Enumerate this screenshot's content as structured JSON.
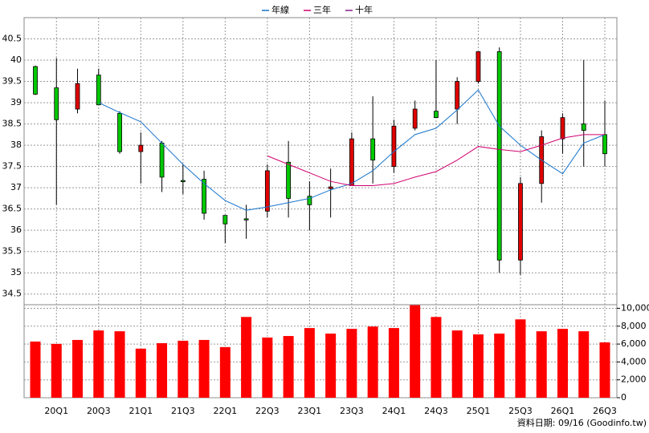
{
  "chart_data": {
    "type": "candlestick",
    "categories": [
      null,
      "20Q1",
      null,
      "20Q3",
      null,
      "21Q1",
      null,
      "21Q3",
      null,
      "22Q1",
      null,
      "22Q3",
      null,
      "23Q1",
      null,
      "23Q3",
      null,
      "24Q1",
      null,
      "24Q3",
      null,
      "25Q1",
      null,
      "25Q3",
      null,
      "26Q1",
      null,
      "26Q3"
    ],
    "ohlc": {
      "open": [
        39.85,
        39.35,
        38.85,
        39.65,
        38.75,
        37.85,
        38.05,
        37.17,
        37.2,
        36.35,
        36.27,
        36.45,
        37.6,
        36.8,
        36.98,
        37.05,
        38.15,
        37.5,
        38.4,
        38.8,
        38.85,
        39.5,
        40.2,
        35.3,
        37.1,
        38.15,
        38.5,
        38.25
      ],
      "high": [
        39.87,
        40.05,
        39.8,
        39.8,
        38.8,
        38.3,
        38.1,
        37.55,
        37.4,
        36.35,
        36.6,
        37.55,
        38.1,
        37.15,
        37.45,
        38.3,
        39.15,
        38.6,
        39.05,
        40.0,
        39.6,
        40.2,
        40.3,
        37.25,
        38.35,
        38.75,
        40.0,
        39.05
      ],
      "low": [
        39.18,
        36.6,
        38.75,
        38.95,
        37.8,
        37.1,
        36.9,
        36.85,
        36.25,
        35.7,
        35.8,
        36.3,
        36.3,
        36.0,
        36.3,
        37.05,
        37.1,
        37.35,
        38.35,
        38.65,
        38.5,
        39.45,
        35.0,
        34.95,
        36.65,
        37.8,
        37.5,
        37.5
      ],
      "close": [
        39.2,
        38.6,
        39.45,
        38.95,
        37.85,
        38.0,
        37.25,
        37.15,
        36.4,
        36.15,
        36.25,
        37.4,
        36.75,
        36.6,
        37.02,
        38.15,
        37.65,
        38.45,
        38.85,
        38.65,
        39.5,
        40.2,
        35.3,
        37.1,
        38.2,
        38.65,
        38.35,
        37.8
      ]
    },
    "up_color": "#e00000",
    "down_color": "#00c800",
    "series": [
      {
        "name": "年線",
        "color": "#1874cd",
        "values": [
          null,
          null,
          null,
          39.0,
          38.77,
          38.55,
          38.05,
          37.55,
          37.1,
          36.7,
          36.47,
          36.55,
          36.65,
          36.75,
          36.95,
          37.1,
          37.4,
          37.85,
          38.25,
          38.4,
          38.83,
          39.3,
          38.45,
          38.0,
          37.65,
          37.33,
          38.05,
          38.25
        ]
      },
      {
        "name": "三年",
        "color": "#d0006f",
        "values": [
          null,
          null,
          null,
          null,
          null,
          null,
          null,
          null,
          null,
          null,
          null,
          37.75,
          37.55,
          37.35,
          37.15,
          37.05,
          37.05,
          37.1,
          37.25,
          37.38,
          37.65,
          37.97,
          37.9,
          37.85,
          38.0,
          38.17,
          38.25,
          38.25
        ]
      },
      {
        "name": "十年",
        "color": "#8b1a8b",
        "values": [
          null,
          null,
          null,
          null,
          null,
          null,
          null,
          null,
          null,
          null,
          null,
          null,
          null,
          null,
          null,
          null,
          null,
          null,
          null,
          null,
          null,
          null,
          null,
          null,
          null,
          null,
          null,
          null
        ]
      }
    ],
    "volume": {
      "color": "#ff0000",
      "values": [
        6280,
        6020,
        6460,
        7520,
        7430,
        5490,
        6100,
        6370,
        6460,
        5660,
        9030,
        6730,
        6900,
        7790,
        7170,
        7700,
        7960,
        7790,
        10350,
        9030,
        7520,
        7080,
        7170,
        8760,
        7430,
        7700,
        7430,
        6190
      ]
    },
    "ylim": [
      34.25,
      41.0
    ],
    "yticks": [
      34.5,
      35,
      35.5,
      36,
      36.5,
      37,
      37.5,
      38,
      38.5,
      39,
      39.5,
      40,
      40.5
    ],
    "y2lim": [
      0,
      10400
    ],
    "y2ticks": [
      0,
      {
        "value": 2000,
        "label": "2,000"
      },
      {
        "value": 4000,
        "label": "4,000"
      },
      {
        "value": 6000,
        "label": "6,000"
      },
      {
        "value": 8000,
        "label": "8,000"
      },
      {
        "value": 10000,
        "label": "10,000"
      }
    ],
    "grid": true,
    "legend": "top",
    "source": "資料日期: 09/16 (Goodinfo.tw)"
  }
}
